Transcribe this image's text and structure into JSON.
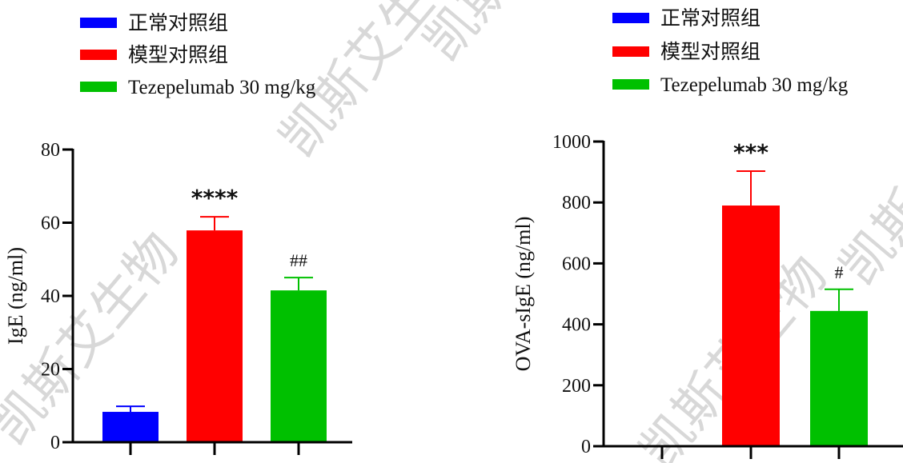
{
  "watermark": "凯斯艾生物",
  "legend": [
    {
      "label": "正常对照组",
      "color": "#0000ff"
    },
    {
      "label": "模型对照组",
      "color": "#ff0000"
    },
    {
      "label": "Tezepelumab 30 mg/kg",
      "color": "#00c000"
    }
  ],
  "chart_data": [
    {
      "type": "bar",
      "categories": [
        "正常对照组",
        "模型对照组",
        "Tezepelumab 30 mg/kg"
      ],
      "values": [
        8.3,
        57.9,
        41.5
      ],
      "error_upper": [
        9.8,
        61.6,
        45.0
      ],
      "annotations": [
        "",
        "****",
        "##"
      ],
      "ylabel": "IgE (ng/ml)",
      "ylim": [
        0,
        80
      ],
      "yticks": [
        0,
        20,
        40,
        60,
        80
      ],
      "grid": false,
      "legend_position": "top-left"
    },
    {
      "type": "bar",
      "categories": [
        "正常对照组",
        "模型对照组",
        "Tezepelumab 30 mg/kg"
      ],
      "values": [
        0,
        790,
        444
      ],
      "error_upper": [
        0,
        903,
        515
      ],
      "annotations": [
        "",
        "***",
        "#"
      ],
      "ylabel": "OVA-sIgE (ng/ml)",
      "ylim": [
        0,
        1000
      ],
      "yticks": [
        0,
        200,
        400,
        600,
        800,
        1000
      ],
      "grid": false,
      "legend_position": "top-left"
    }
  ]
}
